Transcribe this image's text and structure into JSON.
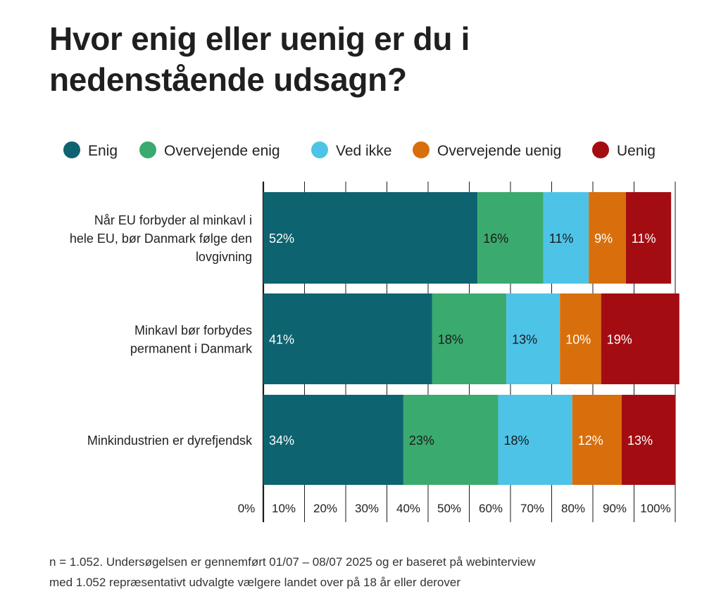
{
  "chart_data": {
    "type": "bar",
    "orientation": "horizontal",
    "stacked": true,
    "title": "Hvor enig eller uenig er du i nedenstående udsagn?",
    "categories": [
      [
        "Når EU forbyder al minkavl i",
        "hele EU, bør Danmark følge den",
        "lovgivning"
      ],
      [
        "Minkavl bør forbydes",
        "permanent i Danmark"
      ],
      [
        "Minkindustrien er dyrefjendsk"
      ]
    ],
    "series": [
      {
        "name": "Enig",
        "color": "#0e6370",
        "label_color": "#ffffff",
        "values": [
          52,
          41,
          34
        ]
      },
      {
        "name": "Overvejende enig",
        "color": "#3aaa6e",
        "label_color": "#1a1a1a",
        "values": [
          16,
          18,
          23
        ]
      },
      {
        "name": "Ved ikke",
        "color": "#4ec3e8",
        "label_color": "#1a1a1a",
        "values": [
          11,
          13,
          18
        ]
      },
      {
        "name": "Overvejende uenig",
        "color": "#d86f0c",
        "label_color": "#ffffff",
        "values": [
          9,
          10,
          12
        ]
      },
      {
        "name": "Uenig",
        "color": "#a30d12",
        "label_color": "#ffffff",
        "values": [
          11,
          19,
          13
        ]
      }
    ],
    "data_labels": [
      [
        "52%",
        "41%",
        "34%"
      ],
      [
        "16%",
        "18%",
        "23%"
      ],
      [
        "11%",
        "13%",
        "18%"
      ],
      [
        "9%",
        "10%",
        "12%"
      ],
      [
        "11%",
        "19%",
        "13%"
      ]
    ],
    "x_ticks": [
      "0%",
      "10%",
      "20%",
      "30%",
      "40%",
      "50%",
      "60%",
      "70%",
      "80%",
      "90%",
      "100%"
    ],
    "xlim": [
      0,
      100
    ],
    "grid": true,
    "legend_position": "top"
  },
  "note_lines": [
    "n = 1.052. Undersøgelsen er gennemført 01/07 – 08/07 2025 og er baseret på webinterview",
    "med 1.052 repræsentativt udvalgte vælgere landet over på 18 år eller derover"
  ]
}
